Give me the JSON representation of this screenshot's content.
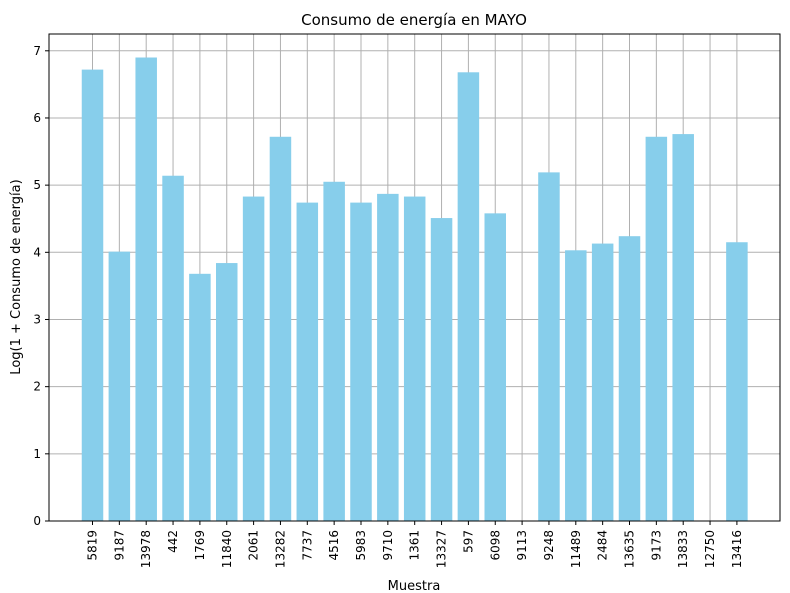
{
  "chart_data": {
    "type": "bar",
    "title": "Consumo de energía en MAYO",
    "xlabel": "Muestra",
    "ylabel": "Log(1 + Consumo de energía)",
    "categories": [
      "5819",
      "9187",
      "13978",
      "442",
      "1769",
      "11840",
      "2061",
      "13282",
      "7737",
      "4516",
      "5983",
      "9710",
      "1361",
      "13327",
      "597",
      "6098",
      "9113",
      "9248",
      "11489",
      "2484",
      "13635",
      "9173",
      "13833",
      "12750",
      "13416"
    ],
    "values": [
      6.72,
      4.01,
      6.9,
      5.14,
      3.68,
      3.84,
      4.83,
      5.72,
      4.74,
      5.05,
      4.74,
      4.87,
      4.83,
      4.51,
      6.68,
      4.58,
      0,
      5.19,
      4.03,
      4.13,
      4.24,
      5.72,
      5.76,
      0,
      4.15
    ],
    "yticks": [
      0,
      1,
      2,
      3,
      4,
      5,
      6,
      7
    ],
    "ylim": [
      0,
      7.25
    ],
    "grid": true,
    "bar_color": "#87ceeb",
    "grid_color": "#b0b0b0"
  }
}
